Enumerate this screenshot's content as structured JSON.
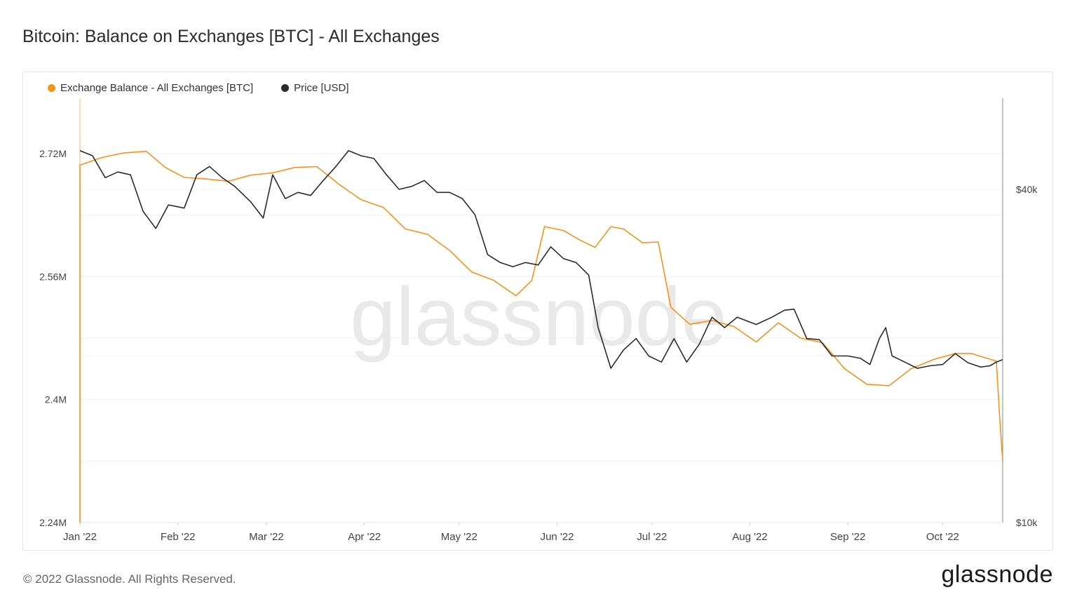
{
  "title": "Bitcoin: Balance on Exchanges [BTC] - All Exchanges",
  "footer": {
    "copyright": "© 2022 Glassnode. All Rights Reserved.",
    "logo": "glassnode"
  },
  "watermark": "glassnode",
  "chart_data": {
    "type": "line",
    "title": "Bitcoin: Balance on Exchanges [BTC] - All Exchanges",
    "x_range": [
      "2022-01-01",
      "2022-10-19"
    ],
    "x_ticks": [
      "Jan '22",
      "Feb '22",
      "Mar '22",
      "Apr '22",
      "May '22",
      "Jun '22",
      "Jul '22",
      "Aug '22",
      "Sep '22",
      "Oct '22"
    ],
    "y_left": {
      "ticks": [
        "2.24M",
        "2.4M",
        "2.56M",
        "2.72M"
      ],
      "range": [
        2240000,
        2800000
      ]
    },
    "y_right": {
      "ticks": [
        "$10k",
        "$40k"
      ],
      "scale": "log",
      "range": [
        10000,
        80000
      ]
    },
    "grid": true,
    "legend_position": "top-left",
    "series": [
      {
        "name": "Exchange Balance - All Exchanges [BTC]",
        "color": "#f7931a",
        "axis": "left",
        "points": [
          [
            "2022-01-01",
            2705000
          ],
          [
            "2022-01-08",
            2715000
          ],
          [
            "2022-01-15",
            2721000
          ],
          [
            "2022-01-22",
            2723000
          ],
          [
            "2022-01-28",
            2702000
          ],
          [
            "2022-02-03",
            2689000
          ],
          [
            "2022-02-10",
            2687000
          ],
          [
            "2022-02-17",
            2684000
          ],
          [
            "2022-02-24",
            2692000
          ],
          [
            "2022-03-03",
            2695000
          ],
          [
            "2022-03-10",
            2702000
          ],
          [
            "2022-03-17",
            2703000
          ],
          [
            "2022-03-24",
            2680000
          ],
          [
            "2022-03-31",
            2660000
          ],
          [
            "2022-04-07",
            2650000
          ],
          [
            "2022-04-14",
            2622000
          ],
          [
            "2022-04-21",
            2615000
          ],
          [
            "2022-04-28",
            2594000
          ],
          [
            "2022-05-05",
            2566000
          ],
          [
            "2022-05-12",
            2555000
          ],
          [
            "2022-05-19",
            2535000
          ],
          [
            "2022-05-24",
            2555000
          ],
          [
            "2022-05-28",
            2625000
          ],
          [
            "2022-06-03",
            2620000
          ],
          [
            "2022-06-08",
            2608000
          ],
          [
            "2022-06-13",
            2598000
          ],
          [
            "2022-06-18",
            2625000
          ],
          [
            "2022-06-22",
            2622000
          ],
          [
            "2022-06-28",
            2604000
          ],
          [
            "2022-07-03",
            2605000
          ],
          [
            "2022-07-07",
            2520000
          ],
          [
            "2022-07-13",
            2498000
          ],
          [
            "2022-07-20",
            2503000
          ],
          [
            "2022-07-27",
            2495000
          ],
          [
            "2022-08-03",
            2475000
          ],
          [
            "2022-08-10",
            2500000
          ],
          [
            "2022-08-17",
            2480000
          ],
          [
            "2022-08-24",
            2474000
          ],
          [
            "2022-08-31",
            2440000
          ],
          [
            "2022-09-07",
            2420000
          ],
          [
            "2022-09-14",
            2418000
          ],
          [
            "2022-09-21",
            2440000
          ],
          [
            "2022-09-28",
            2452000
          ],
          [
            "2022-10-05",
            2460000
          ],
          [
            "2022-10-10",
            2460000
          ],
          [
            "2022-10-14",
            2455000
          ],
          [
            "2022-10-18",
            2450000
          ],
          [
            "2022-10-19",
            2380000
          ],
          [
            "2022-10-20",
            2320000
          ]
        ]
      },
      {
        "name": "Price [USD]",
        "color": "#2b2b2b",
        "axis": "right",
        "points": [
          [
            "2022-01-01",
            47000
          ],
          [
            "2022-01-05",
            46000
          ],
          [
            "2022-01-09",
            42000
          ],
          [
            "2022-01-13",
            43000
          ],
          [
            "2022-01-17",
            42500
          ],
          [
            "2022-01-21",
            36500
          ],
          [
            "2022-01-25",
            34000
          ],
          [
            "2022-01-29",
            37500
          ],
          [
            "2022-02-03",
            37000
          ],
          [
            "2022-02-07",
            42500
          ],
          [
            "2022-02-11",
            44000
          ],
          [
            "2022-02-15",
            42000
          ],
          [
            "2022-02-19",
            40500
          ],
          [
            "2022-02-24",
            38000
          ],
          [
            "2022-02-28",
            35500
          ],
          [
            "2022-03-03",
            42500
          ],
          [
            "2022-03-07",
            38500
          ],
          [
            "2022-03-11",
            39500
          ],
          [
            "2022-03-15",
            39000
          ],
          [
            "2022-03-19",
            41500
          ],
          [
            "2022-03-23",
            44000
          ],
          [
            "2022-03-27",
            47000
          ],
          [
            "2022-03-31",
            46000
          ],
          [
            "2022-04-04",
            45500
          ],
          [
            "2022-04-08",
            42500
          ],
          [
            "2022-04-12",
            40000
          ],
          [
            "2022-04-16",
            40500
          ],
          [
            "2022-04-20",
            41500
          ],
          [
            "2022-04-24",
            39500
          ],
          [
            "2022-04-28",
            39500
          ],
          [
            "2022-05-02",
            38500
          ],
          [
            "2022-05-06",
            36000
          ],
          [
            "2022-05-10",
            30500
          ],
          [
            "2022-05-14",
            29500
          ],
          [
            "2022-05-18",
            29000
          ],
          [
            "2022-05-22",
            29500
          ],
          [
            "2022-05-26",
            29200
          ],
          [
            "2022-05-30",
            31500
          ],
          [
            "2022-06-03",
            30000
          ],
          [
            "2022-06-07",
            29500
          ],
          [
            "2022-06-11",
            28000
          ],
          [
            "2022-06-14",
            22500
          ],
          [
            "2022-06-18",
            19000
          ],
          [
            "2022-06-22",
            20500
          ],
          [
            "2022-06-26",
            21500
          ],
          [
            "2022-06-30",
            20000
          ],
          [
            "2022-07-04",
            19500
          ],
          [
            "2022-07-08",
            21500
          ],
          [
            "2022-07-12",
            19500
          ],
          [
            "2022-07-16",
            21000
          ],
          [
            "2022-07-20",
            23500
          ],
          [
            "2022-07-24",
            22500
          ],
          [
            "2022-07-28",
            23500
          ],
          [
            "2022-08-03",
            22800
          ],
          [
            "2022-08-08",
            23500
          ],
          [
            "2022-08-12",
            24200
          ],
          [
            "2022-08-15",
            24300
          ],
          [
            "2022-08-19",
            21500
          ],
          [
            "2022-08-23",
            21400
          ],
          [
            "2022-08-27",
            20000
          ],
          [
            "2022-09-01",
            20000
          ],
          [
            "2022-09-05",
            19800
          ],
          [
            "2022-09-08",
            19300
          ],
          [
            "2022-09-11",
            21500
          ],
          [
            "2022-09-13",
            22500
          ],
          [
            "2022-09-15",
            20000
          ],
          [
            "2022-09-19",
            19500
          ],
          [
            "2022-09-23",
            19000
          ],
          [
            "2022-09-27",
            19200
          ],
          [
            "2022-10-01",
            19300
          ],
          [
            "2022-10-05",
            20200
          ],
          [
            "2022-10-09",
            19450
          ],
          [
            "2022-10-13",
            19100
          ],
          [
            "2022-10-16",
            19200
          ],
          [
            "2022-10-18",
            19500
          ],
          [
            "2022-10-20",
            19700
          ]
        ]
      }
    ]
  }
}
